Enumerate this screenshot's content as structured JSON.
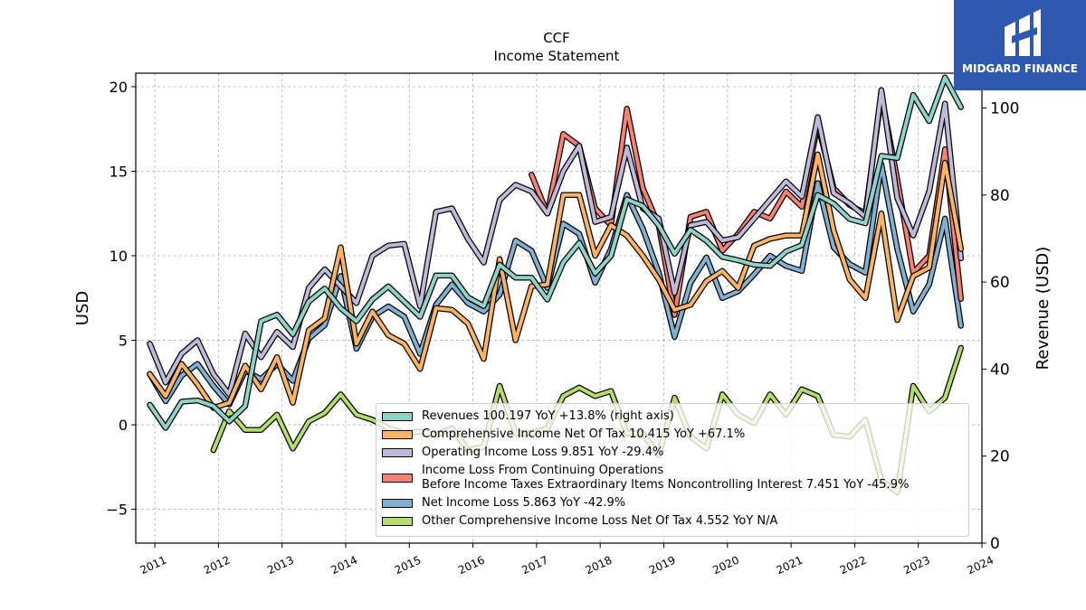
{
  "brand": {
    "name": "MIDGARD FINANCE",
    "bg_color": "#2e59b0"
  },
  "chart_data": {
    "type": "line",
    "title": "CCF",
    "subtitle": "Income Statement",
    "ylabel": "USD",
    "ylabel_right": "Revenue (USD)",
    "ylim": [
      -7,
      20.8
    ],
    "ylim_right": [
      0,
      108
    ],
    "yticks": [
      -5,
      0,
      5,
      10,
      15,
      20
    ],
    "yticks_right": [
      0,
      20,
      40,
      60,
      80,
      100
    ],
    "xlim": [
      2010.7,
      2024.0
    ],
    "xticks": [
      2011,
      2012,
      2013,
      2014,
      2015,
      2016,
      2017,
      2018,
      2019,
      2020,
      2021,
      2022,
      2023,
      2024
    ],
    "grid": true,
    "legend_position": "lower-right",
    "series": [
      {
        "name": "Revenues",
        "legend": "Revenues  100.197 YoY +13.8% (right axis)",
        "color": "#8dd3c7",
        "axis": "right",
        "x": [
          2010.92,
          2011.17,
          2011.42,
          2011.67,
          2011.92,
          2012.17,
          2012.42,
          2012.67,
          2012.92,
          2013.17,
          2013.42,
          2013.67,
          2013.92,
          2014.17,
          2014.42,
          2014.67,
          2014.92,
          2015.17,
          2015.42,
          2015.67,
          2015.92,
          2016.17,
          2016.42,
          2016.67,
          2016.92,
          2017.17,
          2017.42,
          2017.67,
          2017.92,
          2018.17,
          2018.42,
          2018.67,
          2018.92,
          2019.17,
          2019.42,
          2019.67,
          2019.92,
          2020.17,
          2020.42,
          2020.67,
          2020.92,
          2021.17,
          2021.42,
          2021.67,
          2021.92,
          2022.17,
          2022.42,
          2022.67,
          2022.92,
          2023.17,
          2023.42,
          2023.67
        ],
        "y": [
          31.8,
          26.5,
          32.5,
          32.8,
          31.5,
          28,
          31.5,
          51,
          52.5,
          48,
          55.5,
          58.5,
          54,
          51,
          56,
          59,
          55.5,
          52,
          61.5,
          61.5,
          56.5,
          54.5,
          64,
          61,
          61,
          56,
          64.5,
          69,
          62,
          66,
          79,
          77.5,
          73,
          66.5,
          72,
          69.5,
          65.8,
          65,
          64,
          63.7,
          67,
          68.5,
          80,
          78,
          74.5,
          73.5,
          89,
          88.5,
          103,
          97,
          107,
          100.2
        ]
      },
      {
        "name": "Comprehensive Income Net Of Tax",
        "legend": "Comprehensive Income Net Of Tax  10.415 YoY +67.1%",
        "color": "#fdb462",
        "axis": "left",
        "x": [
          2010.92,
          2011.17,
          2011.42,
          2011.67,
          2011.92,
          2012.17,
          2012.42,
          2012.67,
          2012.92,
          2013.17,
          2013.42,
          2013.67,
          2013.92,
          2014.17,
          2014.42,
          2014.67,
          2014.92,
          2015.17,
          2015.42,
          2015.67,
          2015.92,
          2016.17,
          2016.42,
          2016.67,
          2016.92,
          2017.17,
          2017.42,
          2017.67,
          2017.92,
          2018.17,
          2018.42,
          2018.67,
          2018.92,
          2019.17,
          2019.42,
          2019.67,
          2019.92,
          2020.17,
          2020.42,
          2020.67,
          2020.92,
          2021.17,
          2021.42,
          2021.67,
          2021.92,
          2022.17,
          2022.42,
          2022.67,
          2022.92,
          2023.17,
          2023.42,
          2023.67
        ],
        "y": [
          3,
          1.7,
          3.6,
          2.4,
          1,
          1.3,
          3.5,
          2.1,
          4,
          1.3,
          5.6,
          6.3,
          10.5,
          4.8,
          6.7,
          5.3,
          4.8,
          3.3,
          6.9,
          6.8,
          6,
          3.9,
          9.8,
          5,
          8.2,
          8.3,
          13.6,
          13.6,
          10,
          11.8,
          11.2,
          10,
          8.6,
          6.8,
          7.1,
          8.5,
          9.1,
          8.1,
          10.6,
          11,
          11.2,
          11.2,
          16,
          11.5,
          8.6,
          7.5,
          12.5,
          6.2,
          8.8,
          9.3,
          15.5,
          10.4
        ]
      },
      {
        "name": "Operating Income Loss",
        "legend": "Operating Income Loss  9.851 YoY -29.4%",
        "color": "#bebada",
        "axis": "left",
        "x": [
          2010.92,
          2011.17,
          2011.42,
          2011.67,
          2011.92,
          2012.17,
          2012.42,
          2012.67,
          2012.92,
          2013.17,
          2013.42,
          2013.67,
          2013.92,
          2014.17,
          2014.42,
          2014.67,
          2014.92,
          2015.17,
          2015.42,
          2015.67,
          2015.92,
          2016.17,
          2016.42,
          2016.67,
          2016.92,
          2017.17,
          2017.42,
          2017.67,
          2017.92,
          2018.17,
          2018.42,
          2018.67,
          2018.92,
          2019.17,
          2019.42,
          2019.67,
          2019.92,
          2020.17,
          2020.42,
          2020.67,
          2020.92,
          2021.17,
          2021.42,
          2021.67,
          2021.92,
          2022.17,
          2022.42,
          2022.67,
          2022.92,
          2023.17,
          2023.42,
          2023.67
        ],
        "y": [
          4.8,
          2.5,
          4.2,
          5,
          3,
          1.8,
          5.4,
          4,
          5.5,
          4.6,
          8.1,
          9.2,
          8.2,
          7.2,
          10,
          10.6,
          10.7,
          7,
          12.6,
          12.8,
          11,
          9.6,
          13.3,
          14.2,
          13.8,
          12.5,
          15,
          16.5,
          12,
          12.3,
          16.4,
          12.8,
          12.2,
          7.8,
          11.8,
          12,
          10.9,
          11.1,
          12.2,
          13.3,
          14.4,
          13.5,
          18.2,
          13.7,
          13.1,
          12.3,
          19.8,
          13.4,
          11.2,
          13.8,
          19,
          9.85
        ]
      },
      {
        "name": "Income Loss From Continuing Operations Before Income Taxes Extraordinary Items Noncontrolling Interest",
        "legend": "Income Loss From Continuing Operations\nBefore Income Taxes Extraordinary Items Noncontrolling Interest  7.451 YoY -45.9%",
        "color": "#fb8072",
        "axis": "left",
        "x": [
          2016.92,
          2017.17,
          2017.42,
          2017.67,
          2017.92,
          2018.17,
          2018.42,
          2018.67,
          2018.92,
          2019.17,
          2019.42,
          2019.67,
          2019.92,
          2020.17,
          2020.42,
          2020.67,
          2020.92,
          2021.17,
          2021.42,
          2021.67,
          2021.92,
          2022.17,
          2022.42,
          2022.67,
          2022.92,
          2023.17,
          2023.42,
          2023.67
        ],
        "y": [
          14.8,
          12.5,
          17.2,
          16.5,
          12.8,
          11.8,
          18.7,
          14,
          11.8,
          6.5,
          12.3,
          12.6,
          10.3,
          11.3,
          12.6,
          12.2,
          13.8,
          12.9,
          17.8,
          14,
          13,
          12.5,
          19.5,
          14.5,
          9,
          10,
          16.3,
          7.45
        ]
      },
      {
        "name": "Net Income Loss",
        "legend": "Net Income Loss  5.863 YoY -42.9%",
        "color": "#80b1d3",
        "axis": "left",
        "x": [
          2010.92,
          2011.17,
          2011.42,
          2011.67,
          2011.92,
          2012.17,
          2012.42,
          2012.67,
          2012.92,
          2013.17,
          2013.42,
          2013.67,
          2013.92,
          2014.17,
          2014.42,
          2014.67,
          2014.92,
          2015.17,
          2015.42,
          2015.67,
          2015.92,
          2016.17,
          2016.42,
          2016.67,
          2016.92,
          2017.17,
          2017.42,
          2017.67,
          2017.92,
          2018.17,
          2018.42,
          2018.67,
          2018.92,
          2019.17,
          2019.42,
          2019.67,
          2019.92,
          2020.17,
          2020.42,
          2020.67,
          2020.92,
          2021.17,
          2021.42,
          2021.67,
          2021.92,
          2022.17,
          2022.42,
          2022.67,
          2022.92,
          2023.17,
          2023.42,
          2023.67
        ],
        "y": [
          3,
          1.4,
          2.9,
          3.6,
          2.3,
          1.2,
          3.2,
          2.7,
          3.6,
          2.6,
          5.1,
          5.9,
          8.8,
          4.5,
          6.4,
          7,
          6.4,
          4.2,
          7.1,
          8.3,
          7.2,
          6.7,
          7.7,
          10.9,
          10.3,
          8.1,
          11.9,
          11.3,
          8.4,
          10.4,
          13.6,
          11.6,
          9,
          5.2,
          8.4,
          9.9,
          7.5,
          7.9,
          8.9,
          10,
          9.4,
          9.1,
          14.3,
          10.5,
          9.5,
          9,
          15.4,
          10.4,
          6.7,
          8.3,
          12.2,
          5.86
        ]
      },
      {
        "name": "Other Comprehensive Income Loss Net Of Tax",
        "legend": "Other Comprehensive Income Loss Net Of Tax  4.552 YoY N/A",
        "color": "#b3de69",
        "axis": "left",
        "x": [
          2011.92,
          2012.17,
          2012.42,
          2012.67,
          2012.92,
          2013.17,
          2013.42,
          2013.67,
          2013.92,
          2014.17,
          2014.42,
          2014.67,
          2014.92,
          2015.17,
          2015.42,
          2015.67,
          2015.92,
          2016.17,
          2016.42,
          2016.67,
          2016.92,
          2017.17,
          2017.42,
          2017.67,
          2017.92,
          2018.17,
          2018.42,
          2018.67,
          2018.92,
          2019.17,
          2019.42,
          2019.67,
          2019.92,
          2020.17,
          2020.42,
          2020.67,
          2020.92,
          2021.17,
          2021.42,
          2021.67,
          2021.92,
          2022.17,
          2022.42,
          2022.67,
          2022.92,
          2023.17,
          2023.42,
          2023.67
        ],
        "y": [
          -1.5,
          0.8,
          -0.3,
          -0.3,
          0.6,
          -1.4,
          0.2,
          0.7,
          1.8,
          0.6,
          0.3,
          -0.2,
          -0.5,
          -0.4,
          -0.6,
          -0.2,
          -1.5,
          -1.3,
          2.3,
          -0.5,
          -0.5,
          -0.2,
          1.7,
          2.2,
          1.7,
          2,
          -0.5,
          -0.5,
          -1.8,
          1.6,
          -0.7,
          -1.4,
          1.8,
          0.6,
          0.1,
          1.8,
          0.6,
          2.1,
          1.7,
          -0.6,
          -0.7,
          0.3,
          -3.3,
          -4,
          2.3,
          0.8,
          1.6,
          4.55
        ]
      }
    ]
  }
}
